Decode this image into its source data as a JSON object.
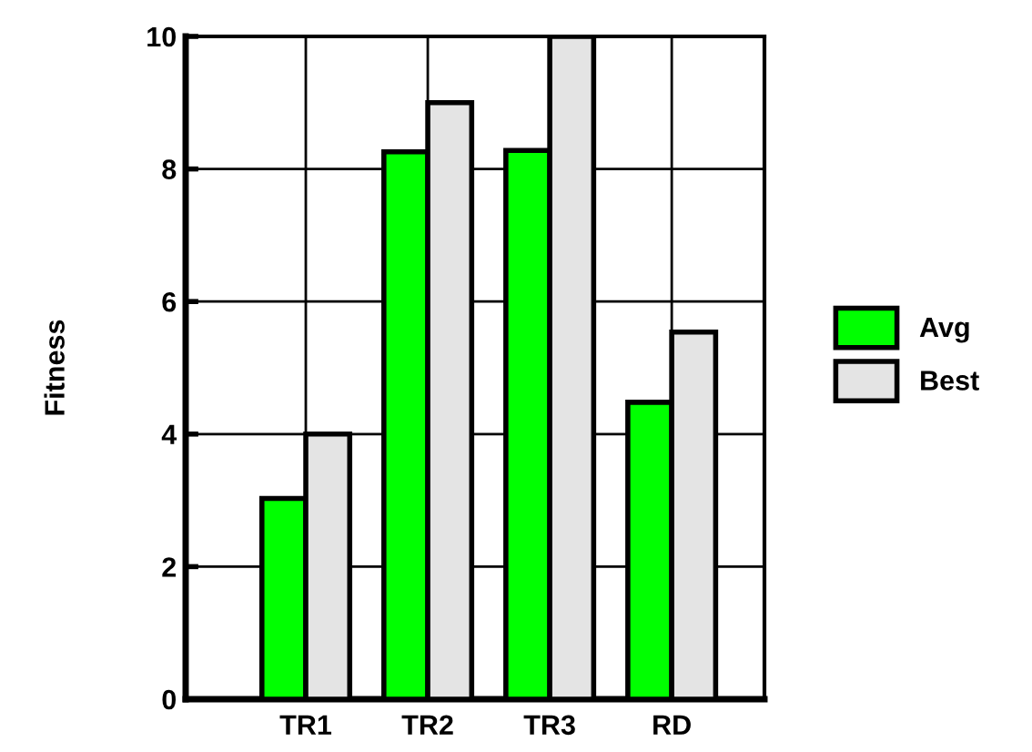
{
  "chart_data": {
    "type": "bar",
    "ylabel": "Fitness",
    "categories": [
      "TR1",
      "TR2",
      "TR3",
      "RD"
    ],
    "series": [
      {
        "name": "Avg",
        "color": "#00ff00",
        "values": [
          3.03,
          8.26,
          8.28,
          4.48
        ]
      },
      {
        "name": "Best",
        "color": "#e4e4e4",
        "values": [
          4.0,
          9.0,
          10.0,
          5.54
        ]
      }
    ],
    "ylim": [
      0,
      10
    ],
    "yticks": [
      0,
      2,
      4,
      6,
      8,
      10
    ],
    "grid": true,
    "legend": "right"
  }
}
